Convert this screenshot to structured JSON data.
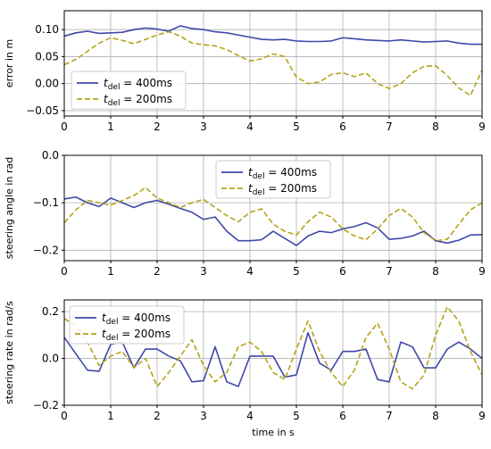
{
  "chart_data": [
    {
      "type": "line",
      "ylabel": "error in m",
      "xlabel": "",
      "xlim": [
        0,
        9
      ],
      "ylim": [
        -0.06,
        0.135
      ],
      "xticks": [
        "0",
        "1",
        "2",
        "3",
        "4",
        "5",
        "6",
        "7",
        "8",
        "9"
      ],
      "yticks": [
        -0.05,
        0.0,
        0.05,
        0.1
      ],
      "ytick_labels": [
        "−0.05",
        "0.00",
        "0.05",
        "0.10"
      ],
      "grid": true,
      "legend": "bottom-left",
      "series": [
        {
          "name": "t_del = 400ms",
          "color": "#3f48a8",
          "dash": "solid",
          "x": [
            0,
            0.25,
            0.5,
            0.75,
            1,
            1.25,
            1.5,
            1.75,
            2,
            2.25,
            2.5,
            2.75,
            3,
            3.25,
            3.5,
            3.75,
            4,
            4.25,
            4.5,
            4.75,
            5,
            5.25,
            5.5,
            5.75,
            6,
            6.25,
            6.5,
            6.75,
            7,
            7.25,
            7.5,
            7.75,
            8,
            8.25,
            8.5,
            8.75,
            9
          ],
          "y": [
            0.088,
            0.094,
            0.097,
            0.093,
            0.094,
            0.095,
            0.1,
            0.103,
            0.101,
            0.097,
            0.107,
            0.102,
            0.1,
            0.096,
            0.094,
            0.09,
            0.086,
            0.082,
            0.081,
            0.082,
            0.079,
            0.078,
            0.078,
            0.079,
            0.085,
            0.083,
            0.081,
            0.08,
            0.079,
            0.081,
            0.079,
            0.077,
            0.078,
            0.079,
            0.075,
            0.073,
            0.073
          ]
        },
        {
          "name": "t_del = 200ms",
          "color": "#b5a319",
          "dash": "dashed",
          "x": [
            0,
            0.25,
            0.5,
            0.75,
            1,
            1.25,
            1.5,
            1.75,
            2,
            2.25,
            2.5,
            2.75,
            3,
            3.25,
            3.5,
            3.75,
            4,
            4.25,
            4.5,
            4.75,
            5,
            5.25,
            5.5,
            5.75,
            6,
            6.25,
            6.5,
            6.75,
            7,
            7.25,
            7.5,
            7.75,
            8,
            8.25,
            8.5,
            8.75,
            9
          ],
          "y": [
            0.035,
            0.045,
            0.06,
            0.075,
            0.085,
            0.08,
            0.074,
            0.082,
            0.09,
            0.096,
            0.088,
            0.075,
            0.072,
            0.07,
            0.063,
            0.052,
            0.042,
            0.046,
            0.055,
            0.05,
            0.012,
            0.0,
            0.003,
            0.017,
            0.02,
            0.013,
            0.02,
            0.0,
            -0.009,
            0.0,
            0.02,
            0.032,
            0.033,
            0.015,
            -0.008,
            -0.022,
            0.025
          ]
        }
      ]
    },
    {
      "type": "line",
      "ylabel": "steering angle in rad",
      "xlabel": "",
      "xlim": [
        0,
        9
      ],
      "ylim": [
        -0.222,
        0.0
      ],
      "xticks": [
        "0",
        "1",
        "2",
        "3",
        "4",
        "5",
        "6",
        "7",
        "8",
        "9"
      ],
      "yticks": [
        -0.2,
        -0.1,
        0.0
      ],
      "ytick_labels": [
        "−0.2",
        "−0.1",
        "0.0"
      ],
      "grid": true,
      "legend": "upper-center",
      "series": [
        {
          "name": "t_del = 400ms",
          "color": "#3f48a8",
          "dash": "solid",
          "x": [
            0,
            0.25,
            0.5,
            0.75,
            1,
            1.25,
            1.5,
            1.75,
            2,
            2.25,
            2.5,
            2.75,
            3,
            3.25,
            3.5,
            3.75,
            4,
            4.25,
            4.5,
            4.75,
            5,
            5.25,
            5.5,
            5.75,
            6,
            6.25,
            6.5,
            6.75,
            7,
            7.25,
            7.5,
            7.75,
            8,
            8.25,
            8.5,
            8.75,
            9
          ],
          "y": [
            -0.092,
            -0.088,
            -0.1,
            -0.108,
            -0.09,
            -0.1,
            -0.11,
            -0.1,
            -0.095,
            -0.103,
            -0.112,
            -0.12,
            -0.135,
            -0.13,
            -0.16,
            -0.18,
            -0.18,
            -0.178,
            -0.16,
            -0.175,
            -0.19,
            -0.17,
            -0.16,
            -0.163,
            -0.155,
            -0.15,
            -0.142,
            -0.153,
            -0.177,
            -0.175,
            -0.17,
            -0.16,
            -0.18,
            -0.185,
            -0.179,
            -0.168,
            -0.167
          ]
        },
        {
          "name": "t_del = 200ms",
          "color": "#b5a319",
          "dash": "dashed",
          "x": [
            0,
            0.25,
            0.5,
            0.75,
            1,
            1.25,
            1.5,
            1.75,
            2,
            2.25,
            2.5,
            2.75,
            3,
            3.25,
            3.5,
            3.75,
            4,
            4.25,
            4.5,
            4.75,
            5,
            5.25,
            5.5,
            5.75,
            6,
            6.25,
            6.5,
            6.75,
            7,
            7.25,
            7.5,
            7.75,
            8,
            8.25,
            8.5,
            8.75,
            9
          ],
          "y": [
            -0.142,
            -0.115,
            -0.095,
            -0.1,
            -0.105,
            -0.095,
            -0.085,
            -0.068,
            -0.09,
            -0.1,
            -0.11,
            -0.1,
            -0.093,
            -0.11,
            -0.127,
            -0.14,
            -0.12,
            -0.113,
            -0.145,
            -0.16,
            -0.168,
            -0.14,
            -0.12,
            -0.13,
            -0.155,
            -0.17,
            -0.178,
            -0.155,
            -0.127,
            -0.112,
            -0.13,
            -0.163,
            -0.18,
            -0.177,
            -0.145,
            -0.115,
            -0.1
          ]
        }
      ]
    },
    {
      "type": "line",
      "ylabel": "steering rate in rad/s",
      "xlabel": "time in s",
      "xlim": [
        0,
        9
      ],
      "ylim": [
        -0.2,
        0.25
      ],
      "xticks": [
        "0",
        "1",
        "2",
        "3",
        "4",
        "5",
        "6",
        "7",
        "8",
        "9"
      ],
      "yticks": [
        -0.2,
        0.0,
        0.2
      ],
      "ytick_labels": [
        "−0.2",
        "0.0",
        "0.2"
      ],
      "grid": true,
      "legend": "upper-left",
      "series": [
        {
          "name": "t_del = 400ms",
          "color": "#3f48a8",
          "dash": "solid",
          "x": [
            0,
            0.25,
            0.5,
            0.75,
            1,
            1.25,
            1.5,
            1.75,
            2,
            2.25,
            2.5,
            2.75,
            3,
            3.25,
            3.5,
            3.75,
            4,
            4.25,
            4.5,
            4.75,
            5,
            5.25,
            5.5,
            5.75,
            6,
            6.25,
            6.5,
            6.75,
            7,
            7.25,
            7.5,
            7.75,
            8,
            8.25,
            8.5,
            8.75,
            9
          ],
          "y": [
            0.09,
            0.02,
            -0.05,
            -0.055,
            0.06,
            0.07,
            -0.04,
            0.04,
            0.04,
            0.01,
            -0.01,
            -0.1,
            -0.095,
            0.05,
            -0.1,
            -0.12,
            0.01,
            0.01,
            0.01,
            -0.08,
            -0.07,
            0.11,
            -0.02,
            -0.05,
            0.03,
            0.03,
            0.04,
            -0.09,
            -0.1,
            0.07,
            0.05,
            -0.04,
            -0.04,
            0.04,
            0.07,
            0.04,
            0.0
          ]
        },
        {
          "name": "t_del = 200ms",
          "color": "#b5a319",
          "dash": "dashed",
          "x": [
            0,
            0.25,
            0.5,
            0.75,
            1,
            1.25,
            1.5,
            1.75,
            2,
            2.25,
            2.5,
            2.75,
            3,
            3.25,
            3.5,
            3.75,
            4,
            4.25,
            4.5,
            4.75,
            5,
            5.25,
            5.5,
            5.75,
            6,
            6.25,
            6.5,
            6.75,
            7,
            7.25,
            7.5,
            7.75,
            8,
            8.25,
            8.5,
            8.75,
            9
          ],
          "y": [
            0.17,
            0.14,
            0.07,
            -0.03,
            0.01,
            0.03,
            -0.04,
            0.0,
            -0.12,
            -0.06,
            0.01,
            0.08,
            -0.03,
            -0.1,
            -0.06,
            0.05,
            0.07,
            0.03,
            -0.06,
            -0.09,
            0.04,
            0.16,
            0.03,
            -0.06,
            -0.12,
            -0.05,
            0.09,
            0.15,
            0.04,
            -0.1,
            -0.13,
            -0.07,
            0.1,
            0.22,
            0.16,
            0.03,
            -0.07
          ]
        }
      ]
    }
  ]
}
